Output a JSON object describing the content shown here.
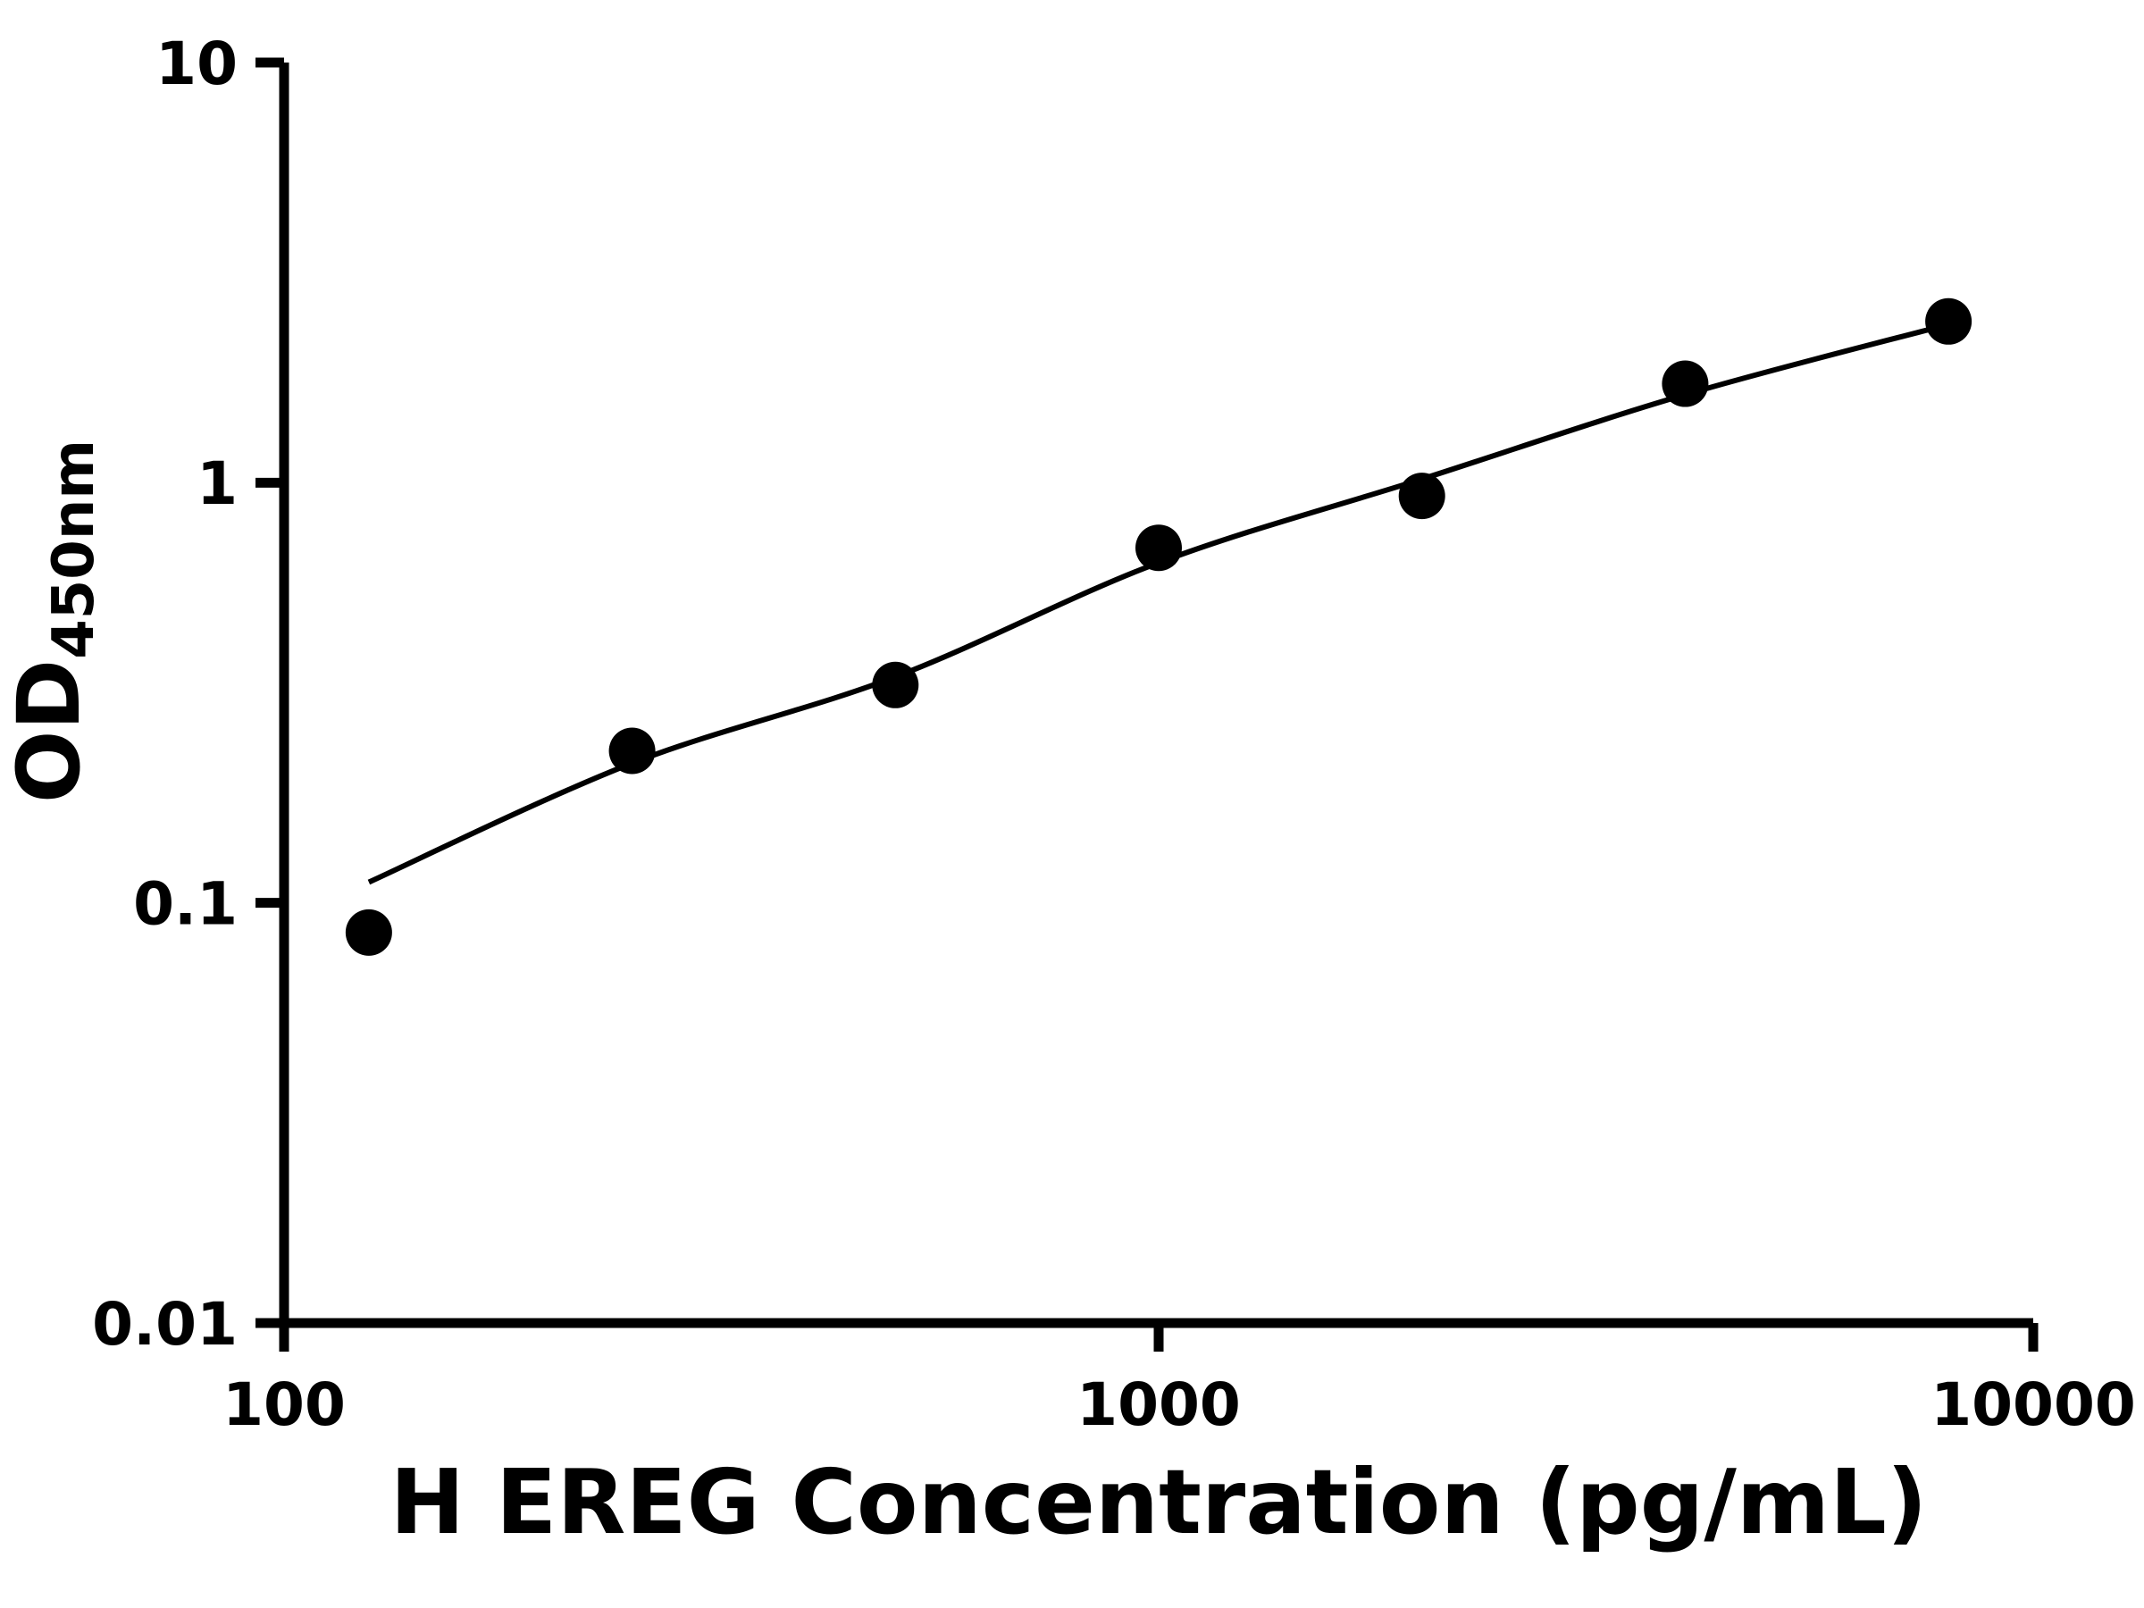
{
  "figure": {
    "background": "#ffffff"
  },
  "chart_data": {
    "type": "scatter",
    "title": "",
    "xlabel": "H EREG Concentration (pg/mL)",
    "ylabel_main": "OD",
    "ylabel_sub": "450nm",
    "x_scale": "log",
    "y_scale": "log",
    "xlim": [
      100,
      10000
    ],
    "ylim": [
      0.01,
      10
    ],
    "grid": false,
    "legend_position": "none",
    "x_ticks": [
      {
        "value": 100,
        "label": "100"
      },
      {
        "value": 1000,
        "label": "1000"
      },
      {
        "value": 10000,
        "label": "10000"
      }
    ],
    "y_ticks": [
      {
        "value": 0.01,
        "label": "0.01"
      },
      {
        "value": 0.1,
        "label": "0.1"
      },
      {
        "value": 1,
        "label": "1"
      },
      {
        "value": 10,
        "label": "10"
      }
    ],
    "points": {
      "x": [
        125,
        250,
        500,
        1000,
        2000,
        4000,
        8000
      ],
      "y": [
        0.085,
        0.23,
        0.33,
        0.7,
        0.93,
        1.72,
        2.42
      ]
    },
    "fit_curve": {
      "x": [
        125,
        250,
        500,
        1000,
        2000,
        4000,
        8000
      ],
      "y": [
        0.112,
        0.215,
        0.345,
        0.645,
        1.02,
        1.62,
        2.38
      ]
    },
    "colors": {
      "points": "#000000",
      "curve": "#000000",
      "axis": "#000000",
      "text": "#000000"
    }
  }
}
